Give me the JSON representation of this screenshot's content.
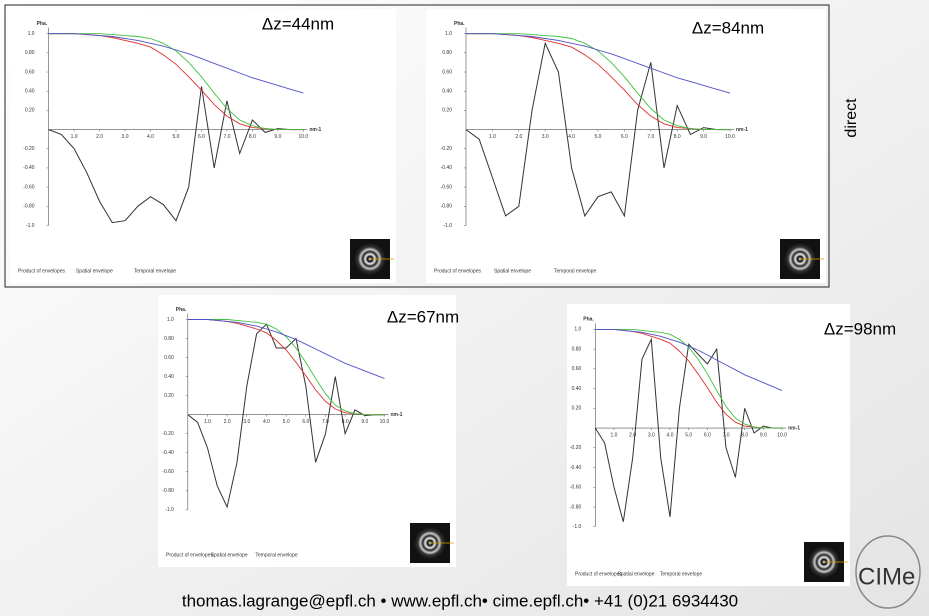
{
  "chart_data": [
    {
      "type": "line",
      "title": "Δz=44nm",
      "y_label": "Pha.",
      "x_label": "nm-1",
      "x": [
        0,
        0.5,
        1,
        1.5,
        2,
        2.5,
        3,
        3.5,
        4,
        4.5,
        5,
        5.5,
        6,
        6.5,
        7,
        7.5,
        8,
        8.5,
        9,
        9.5,
        10
      ],
      "series": [
        {
          "color": "#333333",
          "values": [
            0,
            -0.05,
            -0.2,
            -0.45,
            -0.75,
            -0.97,
            -0.95,
            -0.8,
            -0.7,
            -0.78,
            -0.95,
            -0.6,
            0.45,
            -0.4,
            0.3,
            -0.25,
            0.1,
            -0.03,
            0.01,
            0,
            0
          ]
        },
        {
          "name": "Product of envelopes",
          "color": "#e03030",
          "values": [
            1,
            1,
            1,
            0.99,
            0.98,
            0.96,
            0.93,
            0.9,
            0.86,
            0.78,
            0.68,
            0.55,
            0.41,
            0.26,
            0.14,
            0.06,
            0.02,
            0.01,
            0,
            0,
            0
          ]
        },
        {
          "name": "Spatial envelope",
          "color": "#40c040",
          "values": [
            1,
            1,
            1,
            1,
            1,
            0.99,
            0.98,
            0.97,
            0.95,
            0.9,
            0.82,
            0.7,
            0.55,
            0.38,
            0.22,
            0.1,
            0.04,
            0.01,
            0,
            0,
            0
          ]
        },
        {
          "name": "Temporal envelope",
          "color": "#5050c8",
          "values": [
            1,
            1,
            1,
            0.99,
            0.98,
            0.97,
            0.95,
            0.93,
            0.9,
            0.87,
            0.83,
            0.79,
            0.74,
            0.69,
            0.64,
            0.59,
            0.54,
            0.5,
            0.46,
            0.42,
            0.38
          ]
        }
      ],
      "xlim": [
        0,
        10
      ],
      "ylim": [
        -1,
        1
      ],
      "xticks": [
        {
          "value": 1,
          "label": "1.0"
        },
        {
          "value": 2,
          "label": "2.0"
        },
        {
          "value": 3,
          "label": "3.0"
        },
        {
          "value": 4,
          "label": "4.0"
        },
        {
          "value": 5,
          "label": "5.0"
        },
        {
          "value": 6,
          "label": "6.0"
        },
        {
          "value": 7,
          "label": "7.0"
        },
        {
          "value": 8,
          "label": "8.0"
        },
        {
          "value": 9,
          "label": "9.0"
        },
        {
          "value": 10,
          "label": "10.0"
        }
      ],
      "yticks": [
        {
          "value": 1,
          "label": "1.0"
        },
        {
          "value": 0.8,
          "label": "0.80"
        },
        {
          "value": 0.6,
          "label": "0.60"
        },
        {
          "value": 0.4,
          "label": "0.40"
        },
        {
          "value": 0.2,
          "label": "0.20"
        },
        {
          "value": -0.2,
          "label": "-0.20"
        },
        {
          "value": -0.4,
          "label": "-0.40"
        },
        {
          "value": -0.6,
          "label": "-0.60"
        },
        {
          "value": -0.8,
          "label": "-0.80"
        },
        {
          "value": -1,
          "label": "-1.0"
        }
      ]
    },
    {
      "type": "line",
      "title": "Δz=84nm",
      "y_label": "Pha.",
      "x_label": "nm-1",
      "x": [
        0,
        0.5,
        1,
        1.5,
        2,
        2.5,
        3,
        3.5,
        4,
        4.5,
        5,
        5.5,
        6,
        6.5,
        7,
        7.5,
        8,
        8.5,
        9,
        9.5,
        10
      ],
      "series": [
        {
          "color": "#333333",
          "values": [
            0,
            -0.1,
            -0.5,
            -0.9,
            -0.8,
            0.2,
            0.9,
            0.6,
            -0.4,
            -0.9,
            -0.7,
            -0.65,
            -0.9,
            0.2,
            0.7,
            -0.4,
            0.25,
            -0.05,
            0.02,
            0,
            0
          ]
        },
        {
          "name": "Product of envelopes",
          "color": "#e03030",
          "values": [
            1,
            1,
            1,
            0.99,
            0.98,
            0.96,
            0.93,
            0.9,
            0.86,
            0.78,
            0.68,
            0.55,
            0.41,
            0.26,
            0.14,
            0.06,
            0.02,
            0.01,
            0,
            0,
            0
          ]
        },
        {
          "name": "Spatial envelope",
          "color": "#40c040",
          "values": [
            1,
            1,
            1,
            1,
            1,
            0.99,
            0.98,
            0.97,
            0.95,
            0.9,
            0.82,
            0.7,
            0.55,
            0.38,
            0.22,
            0.1,
            0.04,
            0.01,
            0,
            0,
            0
          ]
        },
        {
          "name": "Temporal envelope",
          "color": "#5050c8",
          "values": [
            1,
            1,
            1,
            0.99,
            0.98,
            0.97,
            0.95,
            0.93,
            0.9,
            0.87,
            0.83,
            0.79,
            0.74,
            0.69,
            0.64,
            0.59,
            0.54,
            0.5,
            0.46,
            0.42,
            0.38
          ]
        }
      ],
      "xlim": [
        0,
        10
      ],
      "ylim": [
        -1,
        1
      ],
      "xticks": [
        {
          "value": 1,
          "label": "1.0"
        },
        {
          "value": 2,
          "label": "2.0"
        },
        {
          "value": 3,
          "label": "3.0"
        },
        {
          "value": 4,
          "label": "4.0"
        },
        {
          "value": 5,
          "label": "5.0"
        },
        {
          "value": 6,
          "label": "6.0"
        },
        {
          "value": 7,
          "label": "7.0"
        },
        {
          "value": 8,
          "label": "8.0"
        },
        {
          "value": 9,
          "label": "9.0"
        },
        {
          "value": 10,
          "label": "10.0"
        }
      ],
      "yticks": [
        {
          "value": 1,
          "label": "1.0"
        },
        {
          "value": 0.8,
          "label": "0.80"
        },
        {
          "value": 0.6,
          "label": "0.60"
        },
        {
          "value": 0.4,
          "label": "0.40"
        },
        {
          "value": 0.2,
          "label": "0.20"
        },
        {
          "value": -0.2,
          "label": "-0.20"
        },
        {
          "value": -0.4,
          "label": "-0.40"
        },
        {
          "value": -0.6,
          "label": "-0.60"
        },
        {
          "value": -0.8,
          "label": "-0.80"
        },
        {
          "value": -1,
          "label": "-1.0"
        }
      ]
    },
    {
      "type": "line",
      "title": "Δz=67nm",
      "y_label": "Pha.",
      "x_label": "nm-1",
      "x": [
        0,
        0.5,
        1,
        1.5,
        2,
        2.5,
        3,
        3.5,
        4,
        4.5,
        5,
        5.5,
        6,
        6.5,
        7,
        7.5,
        8,
        8.5,
        9,
        9.5,
        10
      ],
      "series": [
        {
          "color": "#333333",
          "values": [
            0,
            -0.08,
            -0.35,
            -0.75,
            -0.97,
            -0.5,
            0.3,
            0.85,
            0.95,
            0.7,
            0.7,
            0.8,
            0.3,
            -0.5,
            -0.2,
            0.4,
            -0.2,
            0.05,
            -0.01,
            0,
            0
          ]
        },
        {
          "name": "Product of envelopes",
          "color": "#e03030",
          "values": [
            1,
            1,
            1,
            0.99,
            0.98,
            0.96,
            0.93,
            0.9,
            0.86,
            0.78,
            0.68,
            0.55,
            0.41,
            0.26,
            0.14,
            0.06,
            0.02,
            0.01,
            0,
            0,
            0
          ]
        },
        {
          "name": "Spatial envelope",
          "color": "#40c040",
          "values": [
            1,
            1,
            1,
            1,
            1,
            0.99,
            0.98,
            0.97,
            0.95,
            0.9,
            0.82,
            0.7,
            0.55,
            0.38,
            0.22,
            0.1,
            0.04,
            0.01,
            0,
            0,
            0
          ]
        },
        {
          "name": "Temporal envelope",
          "color": "#5050c8",
          "values": [
            1,
            1,
            1,
            0.99,
            0.98,
            0.97,
            0.95,
            0.93,
            0.9,
            0.87,
            0.83,
            0.79,
            0.74,
            0.69,
            0.64,
            0.59,
            0.54,
            0.5,
            0.46,
            0.42,
            0.38
          ]
        }
      ],
      "xlim": [
        0,
        10
      ],
      "ylim": [
        -1,
        1
      ],
      "xticks": [
        {
          "value": 1,
          "label": "1.0"
        },
        {
          "value": 2,
          "label": "2.0"
        },
        {
          "value": 3,
          "label": "3.0"
        },
        {
          "value": 4,
          "label": "4.0"
        },
        {
          "value": 5,
          "label": "5.0"
        },
        {
          "value": 6,
          "label": "6.0"
        },
        {
          "value": 7,
          "label": "7.0"
        },
        {
          "value": 8,
          "label": "8.0"
        },
        {
          "value": 9,
          "label": "9.0"
        },
        {
          "value": 10,
          "label": "10.0"
        }
      ],
      "yticks": [
        {
          "value": 1,
          "label": "1.0"
        },
        {
          "value": 0.8,
          "label": "0.80"
        },
        {
          "value": 0.6,
          "label": "0.60"
        },
        {
          "value": 0.4,
          "label": "0.40"
        },
        {
          "value": 0.2,
          "label": "0.20"
        },
        {
          "value": -0.2,
          "label": "-0.20"
        },
        {
          "value": -0.4,
          "label": "-0.40"
        },
        {
          "value": -0.6,
          "label": "-0.60"
        },
        {
          "value": -0.8,
          "label": "-0.80"
        },
        {
          "value": -1,
          "label": "-1.0"
        }
      ]
    },
    {
      "type": "line",
      "title": "Δz=98nm",
      "y_label": "Pha.",
      "x_label": "nm-1",
      "x": [
        0,
        0.5,
        1,
        1.5,
        2,
        2.5,
        3,
        3.5,
        4,
        4.5,
        5,
        5.5,
        6,
        6.5,
        7,
        7.5,
        8,
        8.5,
        9,
        9.5,
        10
      ],
      "series": [
        {
          "color": "#333333",
          "values": [
            0,
            -0.15,
            -0.6,
            -0.95,
            -0.3,
            0.7,
            0.9,
            -0.3,
            -0.9,
            0.2,
            0.85,
            0.75,
            0.65,
            0.8,
            -0.2,
            -0.5,
            0.2,
            -0.05,
            0.02,
            0,
            0
          ]
        },
        {
          "name": "Product of envelopes",
          "color": "#e03030",
          "values": [
            1,
            1,
            1,
            0.99,
            0.98,
            0.96,
            0.93,
            0.9,
            0.86,
            0.78,
            0.68,
            0.55,
            0.41,
            0.26,
            0.14,
            0.06,
            0.02,
            0.01,
            0,
            0,
            0
          ]
        },
        {
          "name": "Spatial envelope",
          "color": "#40c040",
          "values": [
            1,
            1,
            1,
            1,
            1,
            0.99,
            0.98,
            0.97,
            0.95,
            0.9,
            0.82,
            0.7,
            0.55,
            0.38,
            0.22,
            0.1,
            0.04,
            0.01,
            0,
            0,
            0
          ]
        },
        {
          "name": "Temporal envelope",
          "color": "#5050c8",
          "values": [
            1,
            1,
            1,
            0.99,
            0.98,
            0.97,
            0.95,
            0.93,
            0.9,
            0.87,
            0.83,
            0.79,
            0.74,
            0.69,
            0.64,
            0.59,
            0.54,
            0.5,
            0.46,
            0.42,
            0.38
          ]
        }
      ],
      "xlim": [
        0,
        10
      ],
      "ylim": [
        -1,
        1
      ],
      "xticks": [
        {
          "value": 1,
          "label": "1.0"
        },
        {
          "value": 2,
          "label": "2.0"
        },
        {
          "value": 3,
          "label": "3.0"
        },
        {
          "value": 4,
          "label": "4.0"
        },
        {
          "value": 5,
          "label": "5.0"
        },
        {
          "value": 6,
          "label": "6.0"
        },
        {
          "value": 7,
          "label": "7.0"
        },
        {
          "value": 8,
          "label": "8.0"
        },
        {
          "value": 9,
          "label": "9.0"
        },
        {
          "value": 10,
          "label": "10.0"
        }
      ],
      "yticks": [
        {
          "value": 1,
          "label": "1.0"
        },
        {
          "value": 0.8,
          "label": "0.80"
        },
        {
          "value": 0.6,
          "label": "0.60"
        },
        {
          "value": 0.4,
          "label": "0.40"
        },
        {
          "value": 0.2,
          "label": "0.20"
        },
        {
          "value": -0.2,
          "label": "-0.20"
        },
        {
          "value": -0.4,
          "label": "-0.40"
        },
        {
          "value": -0.6,
          "label": "-0.60"
        },
        {
          "value": -0.8,
          "label": "-0.80"
        },
        {
          "value": -1,
          "label": "-1.0"
        }
      ]
    }
  ],
  "side_label": "direct",
  "footer": "thomas.lagrange@epfl.ch • www.epfl.ch• cime.epfl.ch• +41 (0)21 6934430",
  "logo": "CIMe"
}
